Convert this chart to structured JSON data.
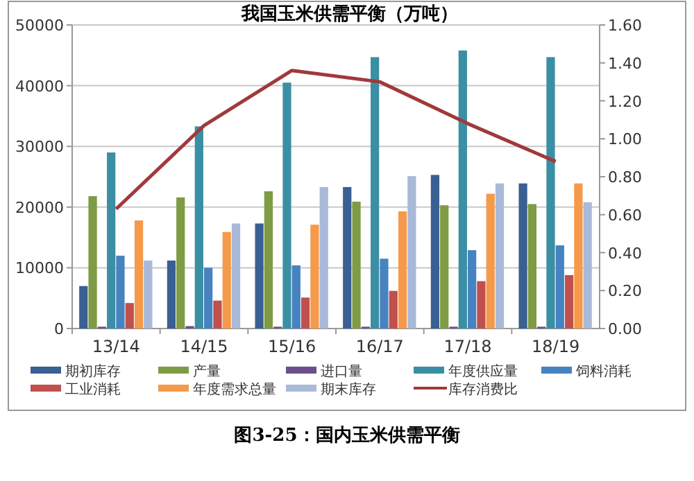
{
  "chart_data": {
    "type": "bar",
    "title": "我国玉米供需平衡（万吨）",
    "annotations": [
      "图3-25：国内玉米供需平衡"
    ],
    "categories": [
      "13/14",
      "14/15",
      "15/16",
      "16/17",
      "17/18",
      "18/19"
    ],
    "series": [
      {
        "name": "期初库存",
        "color": "#3a5f93",
        "values": [
          7000,
          11200,
          17300,
          23300,
          25300,
          23900
        ]
      },
      {
        "name": "产量",
        "color": "#7d9c43",
        "values": [
          21800,
          21600,
          22600,
          20900,
          20300,
          20500
        ]
      },
      {
        "name": "进口量",
        "color": "#6a4f8c",
        "values": [
          300,
          400,
          300,
          300,
          300,
          300
        ]
      },
      {
        "name": "年度供应量",
        "color": "#3b8fa4",
        "values": [
          29000,
          33300,
          40500,
          44700,
          45800,
          44700
        ]
      },
      {
        "name": "饲料消耗",
        "color": "#4683c0",
        "values": [
          12000,
          10000,
          10400,
          11500,
          12900,
          13700
        ]
      },
      {
        "name": "工业消耗",
        "color": "#c0504d",
        "values": [
          4200,
          4600,
          5100,
          6200,
          7800,
          8800
        ]
      },
      {
        "name": "年度需求总量",
        "color": "#f59a4a",
        "values": [
          17800,
          15900,
          17100,
          19300,
          22200,
          23900
        ]
      },
      {
        "name": "期末库存",
        "color": "#a9b9d8",
        "values": [
          11200,
          17300,
          23300,
          25100,
          23900,
          20800
        ]
      },
      {
        "name": "库存消费比",
        "color": "#a0393b",
        "type": "line",
        "axis": "y2",
        "values": [
          0.63,
          1.07,
          1.36,
          1.3,
          1.08,
          0.88
        ]
      }
    ],
    "ylim": [
      0,
      50000
    ],
    "yticks": [
      0,
      10000,
      20000,
      30000,
      40000,
      50000
    ],
    "y2lim": [
      0,
      1.6
    ],
    "y2ticks": [
      {
        "value": 0,
        "label": "0.00"
      },
      {
        "value": 0.2,
        "label": "0.20"
      },
      {
        "value": 0.4,
        "label": "0.40"
      },
      {
        "value": 0.6,
        "label": "0.60"
      },
      {
        "value": 0.8,
        "label": "0.80"
      },
      {
        "value": 1,
        "label": "1.00"
      },
      {
        "value": 1.2,
        "label": "1.20"
      },
      {
        "value": 1.4,
        "label": "1.40"
      },
      {
        "value": 1.6,
        "label": "1.60"
      }
    ],
    "grid": "y",
    "legend": "bottom"
  }
}
